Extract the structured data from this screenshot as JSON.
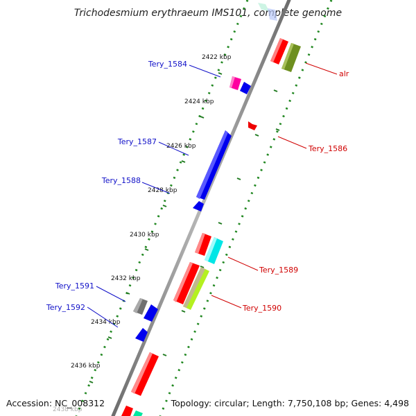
{
  "title": "Trichodesmium erythraeum IMS101, complete genome",
  "accession": "Accession: NC_008312",
  "topology": "Topology: circular; Length: 7,750,108 bp; Genes: 4,498",
  "colors": {
    "backbone": "#8a8a8a",
    "dots": "#228822",
    "tick": "#1f7a1f",
    "reverse_label": "#1010c8",
    "forward_label": "#d00000"
  },
  "ticks": [
    {
      "label": "2422 kbp"
    },
    {
      "label": "2424 kbp"
    },
    {
      "label": "2426 kbp"
    },
    {
      "label": "2428 kbp"
    },
    {
      "label": "2430 kbp"
    },
    {
      "label": "2432 kbp"
    },
    {
      "label": "2434 kbp"
    },
    {
      "label": "2436 kbp"
    },
    {
      "label": "2438 kbp"
    }
  ],
  "genes": [
    {
      "name": "Tery_1584",
      "strand": "reverse"
    },
    {
      "name": "Tery_1587",
      "strand": "reverse"
    },
    {
      "name": "Tery_1588",
      "strand": "reverse"
    },
    {
      "name": "Tery_1591",
      "strand": "reverse"
    },
    {
      "name": "Tery_1592",
      "strand": "reverse"
    },
    {
      "name": "alr",
      "strand": "forward"
    },
    {
      "name": "Tery_1586",
      "strand": "forward"
    },
    {
      "name": "Tery_1589",
      "strand": "forward"
    },
    {
      "name": "Tery_1590",
      "strand": "forward"
    }
  ]
}
